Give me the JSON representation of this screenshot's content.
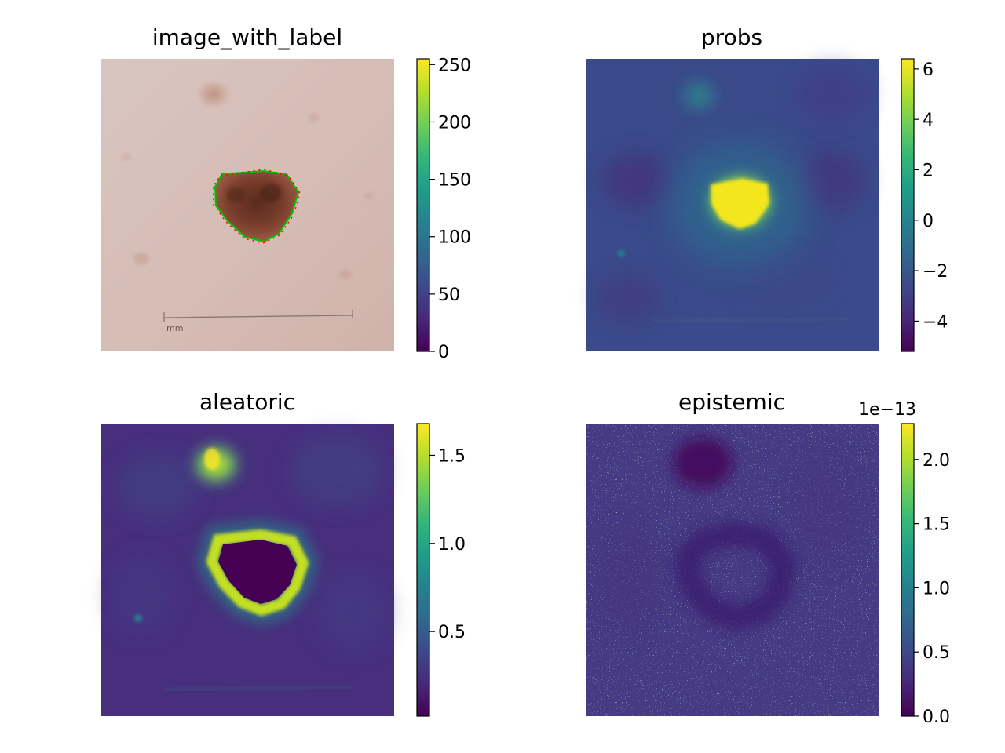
{
  "colormap": "viridis",
  "colormap_stops": [
    "#440154",
    "#482878",
    "#3e4989",
    "#31688e",
    "#26828e",
    "#1f9e89",
    "#35b779",
    "#6ece58",
    "#b5de2b",
    "#fde725"
  ],
  "chart_data": [
    {
      "type": "heatmap",
      "title": "image_with_label",
      "content": "rgb dermoscopy image with lesion contour overlay",
      "ruler_label": "mm",
      "contour_colors": [
        "#00c000",
        "#ff0000"
      ],
      "colorbar": {
        "min": 0,
        "max": 255,
        "ticks": [
          0,
          50,
          100,
          150,
          200,
          250
        ],
        "tick_labels": [
          "0",
          "50",
          "100",
          "150",
          "200",
          "250"
        ],
        "multiplier": ""
      }
    },
    {
      "type": "heatmap",
      "title": "probs",
      "content": "logit map, high in lesion, low elsewhere",
      "colorbar": {
        "min": -5.2,
        "max": 6.4,
        "ticks": [
          -4,
          -2,
          0,
          2,
          4,
          6
        ],
        "tick_labels": [
          "−4",
          "−2",
          "0",
          "2",
          "4",
          "6"
        ],
        "multiplier": ""
      }
    },
    {
      "type": "heatmap",
      "title": "aleatoric",
      "content": "uncertainty ring around lesion boundary",
      "colorbar": {
        "min": 0.02,
        "max": 1.68,
        "ticks": [
          0.5,
          1.0,
          1.5
        ],
        "tick_labels": [
          "0.5",
          "1.0",
          "1.5"
        ],
        "multiplier": ""
      }
    },
    {
      "type": "heatmap",
      "title": "epistemic",
      "content": "noisy near-zero map",
      "colorbar": {
        "min": 0.0,
        "max": 2.28,
        "ticks": [
          0.0,
          0.5,
          1.0,
          1.5,
          2.0
        ],
        "tick_labels": [
          "0.0",
          "0.5",
          "1.0",
          "1.5",
          "2.0"
        ],
        "multiplier": "1e−13"
      }
    }
  ]
}
